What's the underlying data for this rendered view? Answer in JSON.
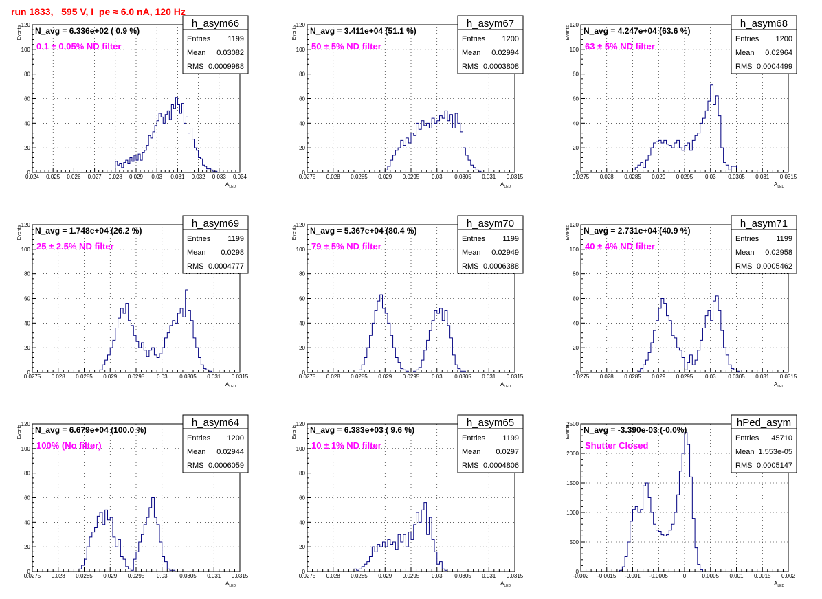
{
  "page": {
    "title": "run 1833,   595 V, I_pe ≈ 6.0 nA, 120 Hz"
  },
  "colors": {
    "histogram": "#000080",
    "annotation": "#ff00ff",
    "title": "#ff0000",
    "grid": "#000000"
  },
  "chart_data": [
    {
      "type": "bar",
      "name": "h_asym66",
      "navg": "N_avg = 6.336e+02 ( 0.9 %)",
      "filter": "0.1 ± 0.05% ND filter",
      "stats": {
        "entries": "1199",
        "mean": "0.03082",
        "rms": "0.0009988"
      },
      "ylabel": "Events",
      "xlabel": "A",
      "xlabel_sub": "LED",
      "xlim": [
        0.024,
        0.034
      ],
      "ylim": [
        0,
        120
      ],
      "xticks": [
        "0.024",
        "0.025",
        "0.026",
        "0.027",
        "0.028",
        "0.029",
        "0.03",
        "0.031",
        "0.032",
        "0.033",
        "0.034"
      ],
      "yticks": [
        "0",
        "20",
        "40",
        "60",
        "80",
        "100",
        "120"
      ],
      "bin_start": 0.028,
      "bin_width": 0.0001,
      "values": [
        9,
        6,
        7,
        4,
        8,
        10,
        7,
        12,
        9,
        14,
        10,
        15,
        10,
        16,
        18,
        22,
        30,
        28,
        33,
        38,
        42,
        48,
        45,
        40,
        47,
        50,
        43,
        55,
        52,
        61,
        55,
        48,
        56,
        40,
        45,
        32,
        36,
        27,
        20,
        18,
        12,
        11,
        6,
        5,
        3,
        3,
        2,
        1,
        1,
        0
      ]
    },
    {
      "type": "bar",
      "name": "h_asym67",
      "navg": "N_avg = 3.411e+04 (51.1 %)",
      "filter": "50 ± 5% ND filter",
      "stats": {
        "entries": "1200",
        "mean": "0.02994",
        "rms": "0.0003808"
      },
      "ylabel": "Events",
      "xlabel": "A",
      "xlabel_sub": "LED",
      "xlim": [
        0.0275,
        0.0315
      ],
      "ylim": [
        0,
        120
      ],
      "xticks": [
        "0.0275",
        "0.028",
        "0.0285",
        "0.029",
        "0.0295",
        "0.03",
        "0.0305",
        "0.031",
        "0.0315"
      ],
      "yticks": [
        "0",
        "20",
        "40",
        "60",
        "80",
        "100",
        "120"
      ],
      "bin_start": 0.029,
      "bin_width": 5e-05,
      "values": [
        2,
        5,
        10,
        14,
        18,
        20,
        26,
        22,
        28,
        24,
        32,
        30,
        40,
        35,
        42,
        38,
        40,
        36,
        44,
        40,
        42,
        46,
        44,
        50,
        42,
        47,
        36,
        48,
        40,
        33,
        20,
        14,
        10,
        6,
        4,
        2,
        1
      ]
    },
    {
      "type": "bar",
      "name": "h_asym68",
      "navg": "N_avg = 4.247e+04 (63.6 %)",
      "filter": "63 ± 5% ND filter",
      "stats": {
        "entries": "1200",
        "mean": "0.02964",
        "rms": "0.0004499"
      },
      "ylabel": "Events",
      "xlabel": "A",
      "xlabel_sub": "LED",
      "xlim": [
        0.0275,
        0.0315
      ],
      "ylim": [
        0,
        120
      ],
      "xticks": [
        "0.0275",
        "0.028",
        "0.0285",
        "0.029",
        "0.0295",
        "0.03",
        "0.0305",
        "0.031",
        "0.0315"
      ],
      "yticks": [
        "0",
        "20",
        "40",
        "60",
        "80",
        "100",
        "120"
      ],
      "bin_start": 0.0285,
      "bin_width": 5e-05,
      "values": [
        2,
        4,
        6,
        8,
        4,
        10,
        14,
        20,
        24,
        25,
        26,
        24,
        26,
        23,
        22,
        20,
        24,
        26,
        20,
        18,
        22,
        24,
        18,
        26,
        30,
        32,
        40,
        44,
        50,
        58,
        71,
        55,
        62,
        46,
        20,
        8,
        6,
        2,
        5,
        5,
        0
      ]
    },
    {
      "type": "bar",
      "name": "h_asym69",
      "navg": "N_avg = 1.748e+04 (26.2 %)",
      "filter": "25 ± 2.5% ND filter",
      "stats": {
        "entries": "1199",
        "mean": "0.0298",
        "rms": "0.0004777"
      },
      "ylabel": "Events",
      "xlabel": "A",
      "xlabel_sub": "LED",
      "xlim": [
        0.0275,
        0.0315
      ],
      "ylim": [
        0,
        120
      ],
      "xticks": [
        "0.0275",
        "0.028",
        "0.0285",
        "0.029",
        "0.0295",
        "0.03",
        "0.0305",
        "0.031",
        "0.0315"
      ],
      "yticks": [
        "0",
        "20",
        "40",
        "60",
        "80",
        "100",
        "120"
      ],
      "bin_start": 0.0288,
      "bin_width": 5e-05,
      "values": [
        2,
        6,
        10,
        14,
        20,
        26,
        36,
        44,
        52,
        48,
        56,
        42,
        38,
        30,
        25,
        20,
        24,
        18,
        13,
        18,
        20,
        14,
        12,
        15,
        20,
        28,
        32,
        38,
        42,
        40,
        48,
        52,
        45,
        67,
        50,
        42,
        28,
        20,
        12,
        6,
        3,
        2,
        1
      ]
    },
    {
      "type": "bar",
      "name": "h_asym70",
      "navg": "N_avg = 5.367e+04 (80.4 %)",
      "filter": "79 ± 5% ND filter",
      "stats": {
        "entries": "1199",
        "mean": "0.02949",
        "rms": "0.0006388"
      },
      "ylabel": "Events",
      "xlabel": "A",
      "xlabel_sub": "LED",
      "xlim": [
        0.0275,
        0.0315
      ],
      "ylim": [
        0,
        120
      ],
      "xticks": [
        "0.0275",
        "0.028",
        "0.0285",
        "0.029",
        "0.0295",
        "0.03",
        "0.0305",
        "0.031",
        "0.0315"
      ],
      "yticks": [
        "0",
        "20",
        "40",
        "60",
        "80",
        "100",
        "120"
      ],
      "bin_start": 0.0285,
      "bin_width": 5e-05,
      "values": [
        2,
        6,
        12,
        20,
        30,
        40,
        50,
        58,
        63,
        52,
        48,
        40,
        30,
        20,
        12,
        8,
        3,
        2,
        1,
        0,
        0,
        1,
        2,
        4,
        10,
        18,
        26,
        34,
        42,
        50,
        48,
        52,
        42,
        50,
        38,
        28,
        14,
        6,
        3,
        1,
        1
      ]
    },
    {
      "type": "bar",
      "name": "h_asym71",
      "navg": "N_avg = 2.731e+04 (40.9 %)",
      "filter": "40 ± 4% ND filter",
      "stats": {
        "entries": "1199",
        "mean": "0.02958",
        "rms": "0.0005462"
      },
      "ylabel": "Events",
      "xlabel": "A",
      "xlabel_sub": "LED",
      "xlim": [
        0.0275,
        0.0315
      ],
      "ylim": [
        0,
        120
      ],
      "xticks": [
        "0.0275",
        "0.028",
        "0.0285",
        "0.029",
        "0.0295",
        "0.03",
        "0.0305",
        "0.031",
        "0.0315"
      ],
      "yticks": [
        "0",
        "20",
        "40",
        "60",
        "80",
        "100",
        "120"
      ],
      "bin_start": 0.0286,
      "bin_width": 5e-05,
      "values": [
        1,
        3,
        6,
        10,
        16,
        24,
        34,
        42,
        52,
        60,
        56,
        46,
        42,
        30,
        28,
        20,
        18,
        12,
        2,
        8,
        14,
        6,
        10,
        18,
        26,
        36,
        46,
        50,
        42,
        58,
        62,
        50,
        34,
        20,
        14,
        6,
        3,
        2,
        1
      ]
    },
    {
      "type": "bar",
      "name": "h_asym64",
      "navg": "N_avg = 6.679e+04 (100.0 %)",
      "filter": "100% (No filter)",
      "stats": {
        "entries": "1200",
        "mean": "0.02944",
        "rms": "0.0006059"
      },
      "ylabel": "Events",
      "xlabel": "A",
      "xlabel_sub": "LED",
      "xlim": [
        0.0275,
        0.0315
      ],
      "ylim": [
        0,
        120
      ],
      "xticks": [
        "0.0275",
        "0.028",
        "0.0285",
        "0.029",
        "0.0295",
        "0.03",
        "0.0305",
        "0.031",
        "0.0315"
      ],
      "yticks": [
        "0",
        "20",
        "40",
        "60",
        "80",
        "100",
        "120"
      ],
      "bin_start": 0.0284,
      "bin_width": 5e-05,
      "values": [
        2,
        5,
        10,
        20,
        28,
        32,
        36,
        45,
        48,
        38,
        50,
        42,
        44,
        28,
        20,
        26,
        12,
        10,
        4,
        2,
        1,
        10,
        16,
        24,
        30,
        38,
        44,
        52,
        60,
        44,
        38,
        24,
        12,
        8,
        2,
        1,
        1
      ]
    },
    {
      "type": "bar",
      "name": "h_asym65",
      "navg": "N_avg = 6.383e+03 ( 9.6 %)",
      "filter": "10 ± 1% ND filter",
      "stats": {
        "entries": "1199",
        "mean": "0.0297",
        "rms": "0.0004806"
      },
      "ylabel": "Events",
      "xlabel": "A",
      "xlabel_sub": "LED",
      "xlim": [
        0.0275,
        0.0315
      ],
      "ylim": [
        0,
        120
      ],
      "xticks": [
        "0.0275",
        "0.028",
        "0.0285",
        "0.029",
        "0.0295",
        "0.03",
        "0.0305",
        "0.031",
        "0.0315"
      ],
      "yticks": [
        "0",
        "20",
        "40",
        "60",
        "80",
        "100",
        "120"
      ],
      "bin_start": 0.0284,
      "bin_width": 5e-05,
      "values": [
        2,
        1,
        2,
        4,
        6,
        8,
        12,
        20,
        16,
        22,
        20,
        24,
        20,
        26,
        22,
        24,
        18,
        30,
        24,
        30,
        20,
        32,
        26,
        38,
        48,
        40,
        50,
        56,
        30,
        44,
        26,
        16,
        6,
        8,
        2,
        1
      ]
    },
    {
      "type": "bar",
      "name": "hPed_asym",
      "navg": "N_avg = -3.390e-03 (-0.0%)",
      "filter": "Shutter Closed",
      "stats": {
        "entries": "45710",
        "mean": "1.553e-05",
        "rms": "0.0005147"
      },
      "ylabel": "Events",
      "xlabel": "A",
      "xlabel_sub": "LED",
      "xlim": [
        -0.002,
        0.002
      ],
      "ylim": [
        0,
        2500
      ],
      "xticks": [
        "-0.002",
        "-0.0015",
        "-0.001",
        "-0.0005",
        "0",
        "0.0005",
        "0.001",
        "0.0015",
        "0.002"
      ],
      "yticks": [
        "0",
        "500",
        "1000",
        "1500",
        "2000",
        "2500"
      ],
      "bin_start": -0.00125,
      "bin_width": 5e-05,
      "values": [
        20,
        80,
        250,
        500,
        850,
        1050,
        1100,
        1000,
        1050,
        1450,
        1500,
        1250,
        1000,
        800,
        700,
        680,
        620,
        600,
        620,
        700,
        800,
        1000,
        1300,
        1700,
        2000,
        2350,
        2150,
        1600,
        900,
        400,
        120,
        30
      ]
    }
  ]
}
